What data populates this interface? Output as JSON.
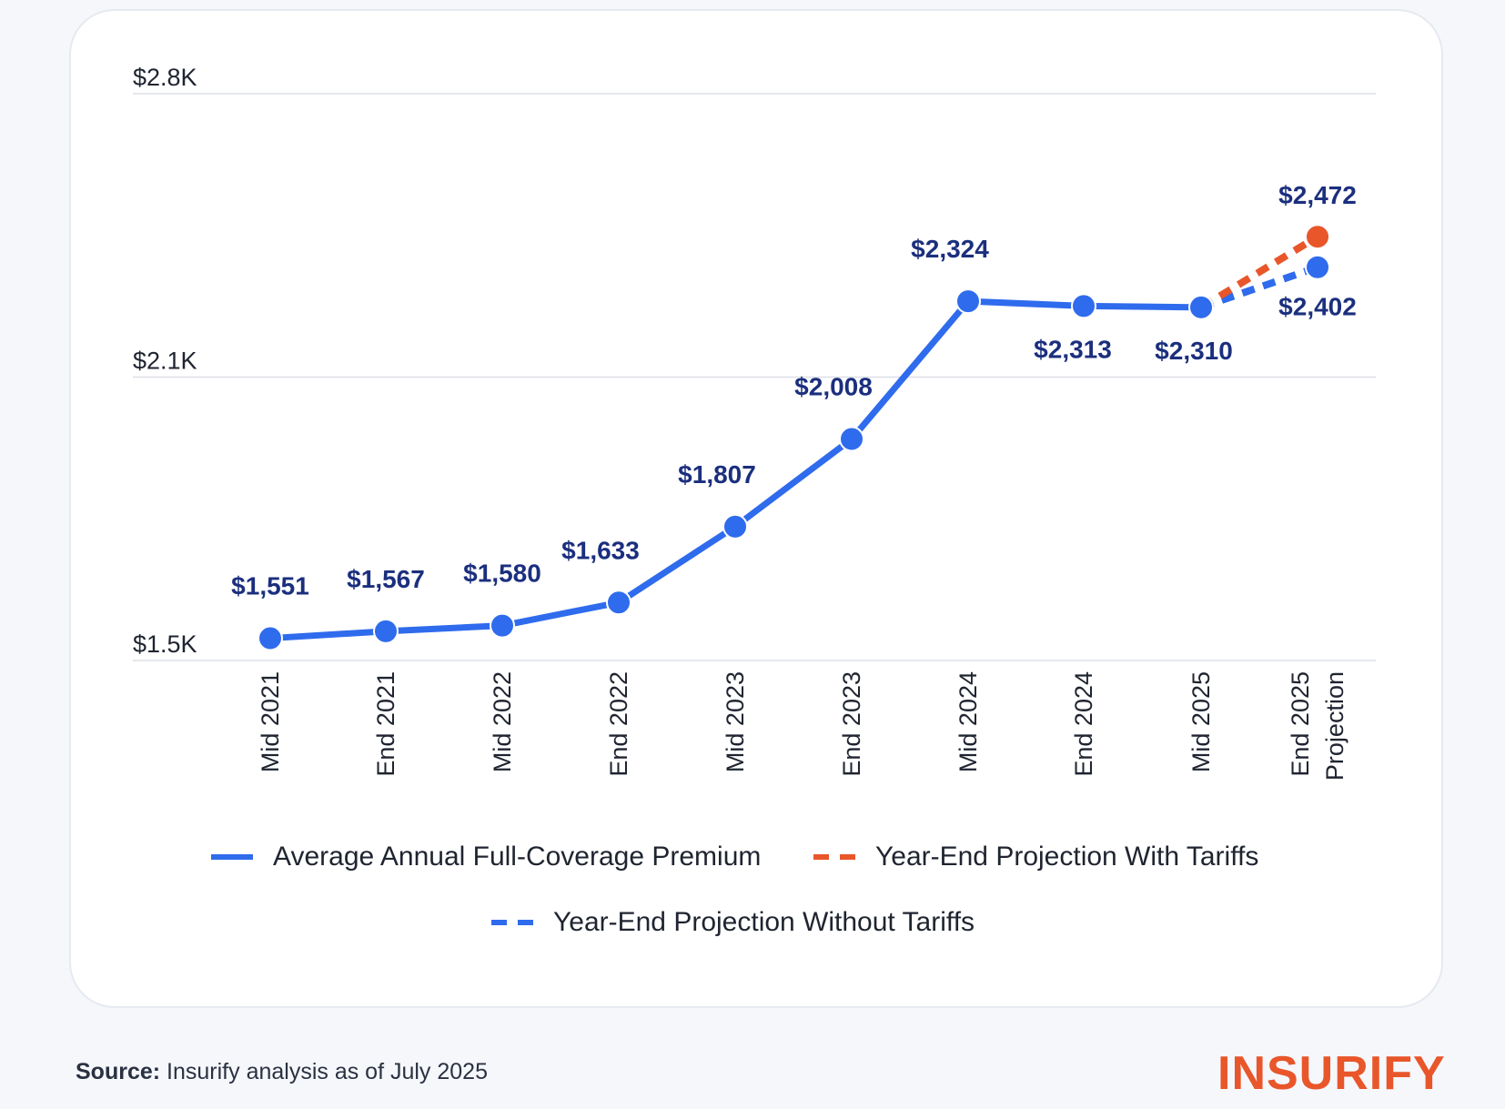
{
  "chart_data": {
    "type": "line",
    "title": "",
    "xlabel": "",
    "ylabel": "",
    "ylim": [
      1500,
      2800
    ],
    "yticks": [
      {
        "value": 1500,
        "label": "$1.5K"
      },
      {
        "value": 2150,
        "label": "$2.1K"
      },
      {
        "value": 2800,
        "label": "$2.8K"
      }
    ],
    "categories": [
      "Mid 2021",
      "End 2021",
      "Mid 2022",
      "End 2022",
      "Mid 2023",
      "End 2023",
      "Mid 2024",
      "End 2024",
      "Mid 2025",
      "End 2025"
    ],
    "category_sublabels": {
      "End 2025": "Projection"
    },
    "series": [
      {
        "name": "Average Annual Full-Coverage Premium",
        "style": "solid",
        "color": "#2f6bed",
        "values": [
          1551,
          1567,
          1580,
          1633,
          1807,
          2008,
          2324,
          2313,
          2310,
          null
        ],
        "labels": [
          "$1,551",
          "$1,567",
          "$1,580",
          "$1,633",
          "$1,807",
          "$2,008",
          "$2,324",
          "$2,313",
          "$2,310",
          null
        ]
      },
      {
        "name": "Year-End Projection With Tariffs",
        "style": "dashed",
        "color": "#e8562a",
        "values": [
          null,
          null,
          null,
          null,
          null,
          null,
          null,
          null,
          2310,
          2472
        ],
        "labels": [
          null,
          null,
          null,
          null,
          null,
          null,
          null,
          null,
          null,
          "$2,472"
        ]
      },
      {
        "name": "Year-End Projection Without Tariffs",
        "style": "dashed",
        "color": "#2f6bed",
        "values": [
          null,
          null,
          null,
          null,
          null,
          null,
          null,
          null,
          2310,
          2402
        ],
        "labels": [
          null,
          null,
          null,
          null,
          null,
          null,
          null,
          null,
          null,
          "$2,402"
        ]
      }
    ],
    "grid": true,
    "legend_placement": "bottom"
  },
  "footer": {
    "source_label": "Source:",
    "source_text": " Insurify analysis as of July 2025",
    "logo": "INSURIFY"
  }
}
